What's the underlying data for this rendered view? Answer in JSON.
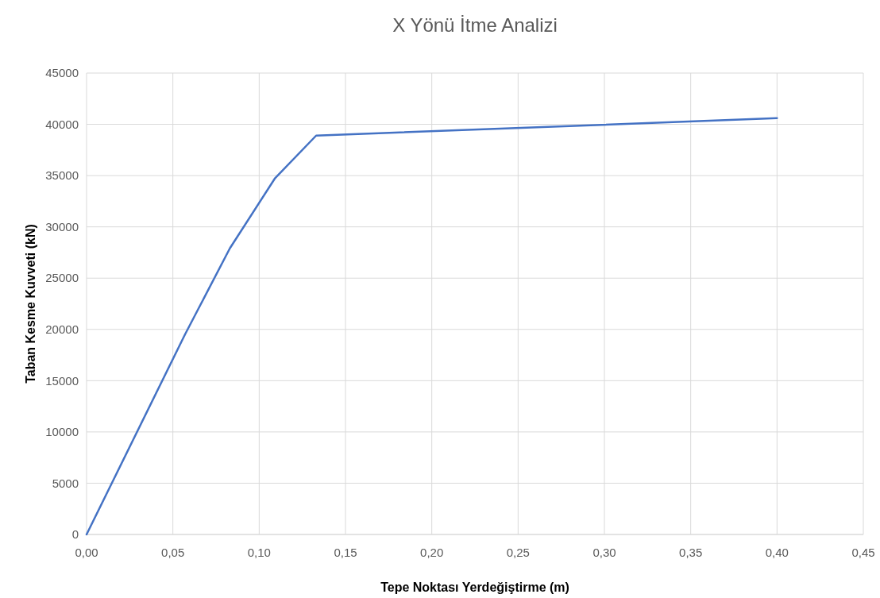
{
  "chart_data": {
    "type": "line",
    "title": "X Yönü İtme Analizi",
    "xlabel": "Tepe Noktası Yerdeğiştirme (m)",
    "ylabel": "Taban Kesme Kuvveti (kN)",
    "x": [
      0,
      0.057,
      0.083,
      0.109,
      0.133,
      0.4
    ],
    "series": [
      {
        "color": "#4472c4",
        "values": [
          0,
          19500,
          27900,
          34700,
          38900,
          40600
        ]
      }
    ],
    "xlim": [
      0,
      0.45
    ],
    "xticks": [
      {
        "value": 0,
        "label": "0,00"
      },
      {
        "value": 0.05,
        "label": "0,05"
      },
      {
        "value": 0.1,
        "label": "0,10"
      },
      {
        "value": 0.15,
        "label": "0,15"
      },
      {
        "value": 0.2,
        "label": "0,20"
      },
      {
        "value": 0.25,
        "label": "0,25"
      },
      {
        "value": 0.3,
        "label": "0,30"
      },
      {
        "value": 0.35,
        "label": "0,35"
      },
      {
        "value": 0.4,
        "label": "0,40"
      },
      {
        "value": 0.45,
        "label": "0,45"
      }
    ],
    "ylim": [
      0,
      45000
    ],
    "yticks": [
      0,
      5000,
      10000,
      15000,
      20000,
      25000,
      30000,
      35000,
      40000,
      45000
    ],
    "grid": true,
    "marker": "none",
    "line_style": "solid"
  }
}
